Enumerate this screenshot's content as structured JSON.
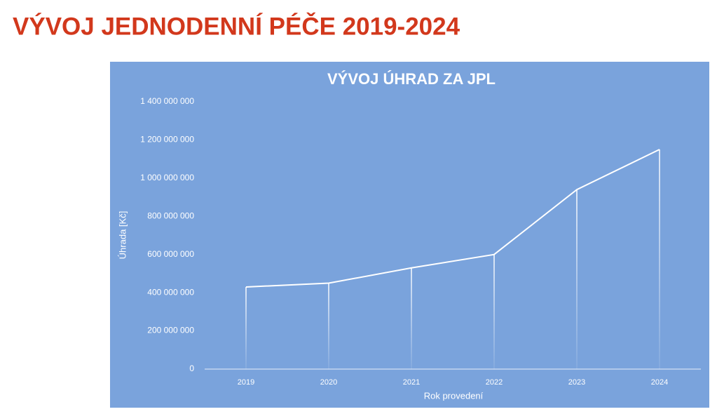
{
  "page_title": "VÝVOJ JEDNODENNÍ PÉČE 2019-2024",
  "chart_data": {
    "type": "line",
    "title": "VÝVOJ ÚHRAD ZA JPL",
    "x_label": "Rok provedení",
    "y_label": "Úhrada [Kč]",
    "categories": [
      "2019",
      "2020",
      "2021",
      "2022",
      "2023",
      "2024"
    ],
    "series": [
      {
        "name": "Úhrada",
        "color": "#ffffff",
        "values": [
          430000000,
          450000000,
          530000000,
          600000000,
          940000000,
          1150000000
        ]
      }
    ],
    "ylim": [
      0,
      1400000000
    ],
    "yticks": [
      0,
      {
        "value": 200000000,
        "label": "200 000 000"
      },
      {
        "value": 400000000,
        "label": "400 000 000"
      },
      {
        "value": 600000000,
        "label": "600 000 000"
      },
      {
        "value": 800000000,
        "label": "800 000 000"
      },
      {
        "value": 1000000000,
        "label": "1 000 000 000"
      },
      {
        "value": 1200000000,
        "label": "1 200 000 000"
      },
      {
        "value": 1400000000,
        "label": "1 400 000 000"
      }
    ],
    "grid": false,
    "drop_lines": true
  }
}
